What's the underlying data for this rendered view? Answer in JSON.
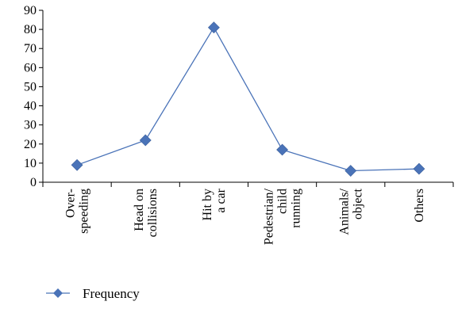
{
  "chart_data": {
    "type": "line",
    "categories": [
      [
        "Over-",
        "speeding"
      ],
      [
        "Head on",
        "collisions"
      ],
      [
        "Hit by",
        "a car"
      ],
      [
        "Pedestrian/",
        "child",
        "running"
      ],
      [
        "Animals/",
        "object"
      ],
      [
        "Others"
      ]
    ],
    "series": [
      {
        "name": "Frequency",
        "values": [
          9,
          22,
          81,
          17,
          6,
          7
        ],
        "color": "#4a73b8",
        "marker": "diamond"
      }
    ],
    "ylim": [
      0,
      90
    ],
    "yticks": [
      0,
      10,
      20,
      30,
      40,
      50,
      60,
      70,
      80,
      90
    ],
    "grid": false,
    "legend_position": "bottom-left"
  }
}
